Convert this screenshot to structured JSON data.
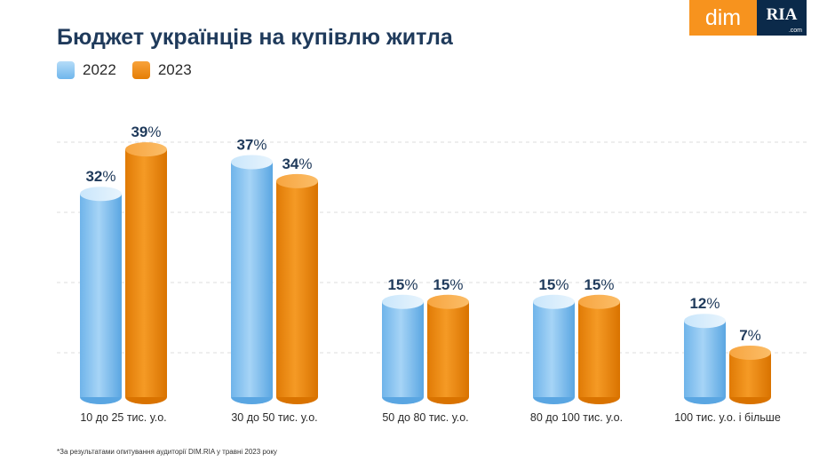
{
  "header": {
    "title": "Бюджет українців на купівлю житла"
  },
  "logo": {
    "dim": "dim",
    "ria": "RIA",
    "com": ".com"
  },
  "legend": [
    {
      "label": "2022",
      "color": "#8ec9f2"
    },
    {
      "label": "2023",
      "color": "#f08a10"
    }
  ],
  "chart_data": {
    "type": "bar",
    "title": "Бюджет українців на купівлю житла",
    "categories": [
      "10 до 25 тис. у.о.",
      "30 до 50 тис. у.о.",
      "50 до 80 тис. у.о.",
      "80 до 100 тис. у.о.",
      "100 тис. у.о. і більше"
    ],
    "series": [
      {
        "name": "2022",
        "values": [
          32,
          37,
          15,
          15,
          12
        ],
        "color": "#8ec9f2",
        "labels": [
          "32%",
          "37%",
          "15%",
          "15%",
          "12%"
        ]
      },
      {
        "name": "2023",
        "values": [
          39,
          34,
          15,
          15,
          7
        ],
        "color": "#f08a10",
        "labels": [
          "39%",
          "34%",
          "15%",
          "15%",
          "7%"
        ]
      }
    ],
    "grid": true,
    "legend_position": "top-left"
  },
  "footnote": "*За результатами опитування аудиторії DIM.RIA у травні 2023 року"
}
